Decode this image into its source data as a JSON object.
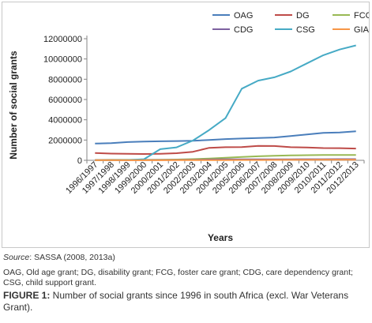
{
  "chart_data": {
    "type": "line",
    "xlabel": "Years",
    "ylabel": "Number of social grants",
    "ylim": [
      0,
      12000000
    ],
    "yticks": [
      0,
      2000000,
      4000000,
      6000000,
      8000000,
      10000000,
      12000000
    ],
    "ytick_labels": [
      "0",
      "2000000",
      "4000000",
      "6000000",
      "8000000",
      "10000000",
      "12000000"
    ],
    "grid": false,
    "legend_position": "top-right",
    "categories": [
      "1996/1997",
      "1997/1998",
      "1998/1999",
      "1999/2000",
      "2000/2001",
      "2001/2002",
      "2002/2003",
      "2003/2004",
      "2004/2005",
      "2005/2006",
      "2006/2007",
      "2007/2008",
      "2008/2009",
      "2009/2010",
      "2010/2011",
      "2011/2012",
      "2012/2013"
    ],
    "series": [
      {
        "name": "OAG",
        "color": "#4a7ebb",
        "values": [
          1650000,
          1700000,
          1800000,
          1850000,
          1880000,
          1900000,
          1930000,
          2000000,
          2100000,
          2150000,
          2200000,
          2250000,
          2400000,
          2550000,
          2700000,
          2750000,
          2870000
        ]
      },
      {
        "name": "DG",
        "color": "#be4b48",
        "values": [
          720000,
          660000,
          640000,
          620000,
          650000,
          700000,
          840000,
          1230000,
          1290000,
          1310000,
          1420000,
          1410000,
          1290000,
          1260000,
          1210000,
          1200000,
          1160000
        ]
      },
      {
        "name": "FCG",
        "color": "#98b954",
        "values": [
          40000,
          45000,
          45000,
          45000,
          60000,
          80000,
          120000,
          180000,
          260000,
          330000,
          400000,
          450000,
          480000,
          510000,
          530000,
          530000,
          530000
        ]
      },
      {
        "name": "CDG",
        "color": "#7d60a0",
        "values": [
          20000,
          20000,
          25000,
          30000,
          35000,
          40000,
          45000,
          80000,
          90000,
          95000,
          100000,
          100000,
          105000,
          110000,
          110000,
          115000,
          120000
        ]
      },
      {
        "name": "CSG",
        "color": "#46aac5",
        "values": [
          0,
          0,
          30000,
          110000,
          1100000,
          1280000,
          1950000,
          2990000,
          4160000,
          7070000,
          7860000,
          8190000,
          8770000,
          9570000,
          10370000,
          10930000,
          11340000
        ]
      },
      {
        "name": "GIA",
        "color": "#f79646",
        "values": [
          10000,
          10000,
          10000,
          10000,
          10000,
          12000,
          15000,
          20000,
          25000,
          30000,
          35000,
          40000,
          45000,
          50000,
          55000,
          60000,
          65000
        ]
      }
    ]
  },
  "captions": {
    "source_label": "Source",
    "source_text": ": SASSA (2008, 2013a)",
    "abbreviations": "OAG, Old age grant; DG, disability grant; FCG, foster care grant; CDG, care dependency grant; CSG, child support grant.",
    "figure_label": "FIGURE 1:",
    "figure_text": " Number of social grants since 1996 in south Africa (excl. War Veterans Grant)."
  }
}
